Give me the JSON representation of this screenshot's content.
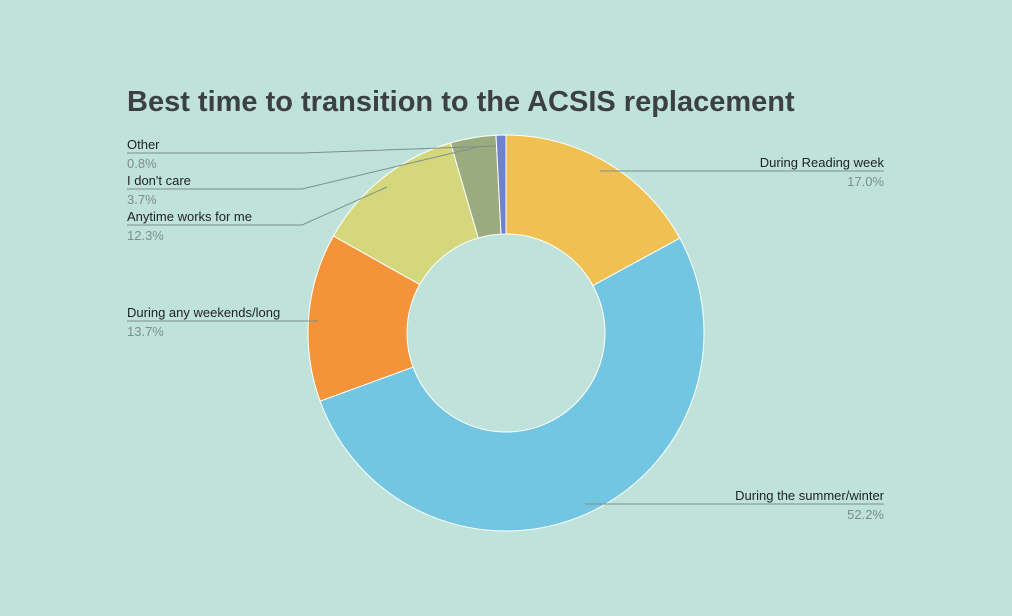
{
  "chart_data": {
    "type": "pie",
    "donut": true,
    "title": "Best time to transition to the ACSIS replacement",
    "slices": [
      {
        "label": "During Reading week",
        "value": 17.0,
        "value_label": "17.0%",
        "color": "#f0c152"
      },
      {
        "label": "During the summer/winter",
        "value": 52.2,
        "value_label": "52.2%",
        "color": "#72c6e2"
      },
      {
        "label": "During any weekends/long",
        "value": 13.7,
        "value_label": "13.7%",
        "color": "#f49339"
      },
      {
        "label": "Anytime works for me",
        "value": 12.3,
        "value_label": "12.3%",
        "color": "#d4d77b"
      },
      {
        "label": "I don't care",
        "value": 3.7,
        "value_label": "3.7%",
        "color": "#99ab7f"
      },
      {
        "label": "Other",
        "value": 0.8,
        "value_label": "0.8%",
        "color": "#6e83cc"
      }
    ],
    "background": "#bfe3db",
    "leader_line_color": "#7d8f8b"
  }
}
